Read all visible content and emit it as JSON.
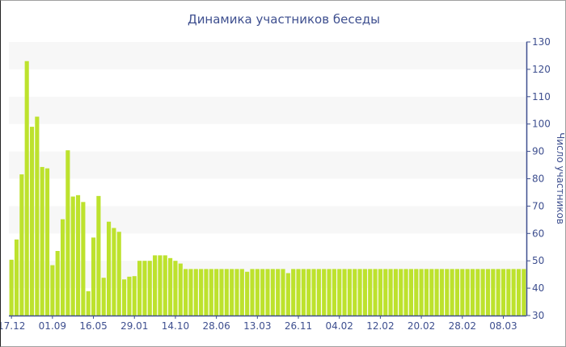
{
  "chart_data": {
    "type": "bar",
    "title": "Динамика участников беседы",
    "xlabel": "",
    "ylabel": "Число участников",
    "y_axis_side": "right",
    "ylim": [
      30,
      130
    ],
    "yticks": [
      30,
      40,
      50,
      60,
      70,
      80,
      90,
      100,
      110,
      120,
      130
    ],
    "grid": "alternating horizontal bands",
    "legend": "none",
    "x_tick_labels": [
      "17.12",
      "01.09",
      "16.05",
      "29.01",
      "14.10",
      "28.06",
      "13.03",
      "26.11",
      "04.02",
      "12.02",
      "20.02",
      "28.02",
      "08.03"
    ],
    "x_tick_every_n_bars": 8,
    "colors": {
      "bar": "#bde22d",
      "axis": "#3e4f8f",
      "band": "#f7f7f7"
    },
    "values": [
      50.4,
      57.8,
      81.6,
      123,
      99,
      102.7,
      84.3,
      83.8,
      48.4,
      53.6,
      65.2,
      90.4,
      73.5,
      74,
      71.5,
      38.9,
      58.5,
      73.7,
      43.8,
      64.3,
      62,
      60.6,
      43.2,
      44.2,
      44.4,
      50,
      50,
      50,
      52,
      52,
      52,
      51,
      50,
      49,
      47,
      47,
      47,
      47,
      47,
      47,
      47,
      47,
      47,
      47,
      47,
      47,
      46,
      47,
      47,
      47,
      47,
      47,
      47,
      47,
      45.5,
      47,
      47,
      47,
      47,
      47,
      47,
      47,
      47,
      47,
      47,
      47,
      47,
      47,
      47,
      47,
      47,
      47,
      47,
      47,
      47,
      47,
      47,
      47,
      47,
      47,
      47,
      47,
      47,
      47,
      47,
      47,
      47,
      47,
      47,
      47,
      47,
      47,
      47,
      47,
      47,
      47,
      47,
      47,
      47,
      47,
      47
    ]
  }
}
